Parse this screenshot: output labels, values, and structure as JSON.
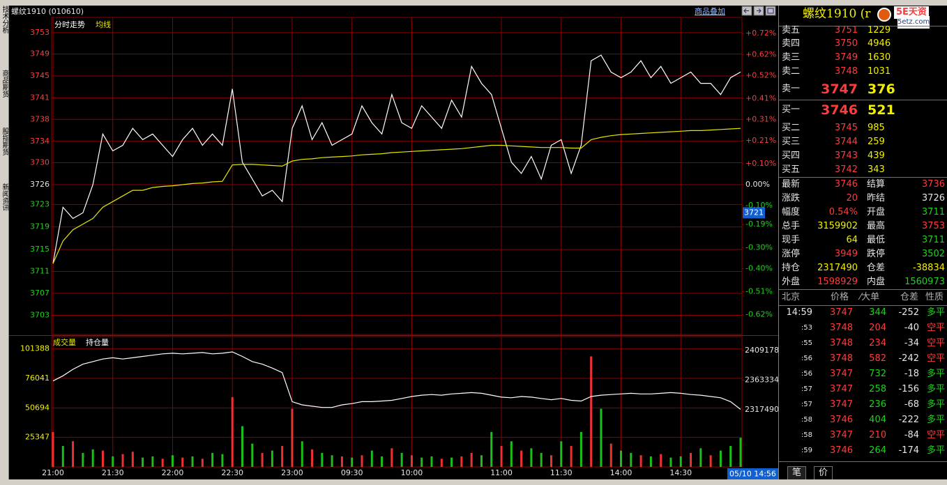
{
  "header": {
    "title": "螺纹1910 (010610)",
    "overlay_link": "商品叠加"
  },
  "side_tabs": [
    "技术分析",
    "商品期货",
    "股指期货",
    "新闻资讯"
  ],
  "chart_data": [
    {
      "type": "line",
      "x": [
        0,
        5,
        10,
        15,
        20,
        25,
        30,
        35,
        40,
        45,
        50,
        55,
        60,
        65,
        70,
        75,
        80,
        85,
        90,
        95,
        100,
        105,
        110,
        115,
        120,
        125,
        130,
        135,
        140,
        145,
        150,
        155,
        160,
        165,
        170,
        175,
        180,
        185,
        190,
        195,
        200,
        205,
        210,
        215,
        220,
        225,
        230,
        235,
        240,
        245,
        250,
        255,
        260,
        265,
        270,
        275,
        280,
        285,
        290,
        295,
        300,
        305,
        310,
        315,
        320,
        325,
        330,
        335,
        340,
        345
      ],
      "series": [
        {
          "name": "分时走势",
          "color": "#ffffff",
          "values": [
            3712,
            3722,
            3720,
            3721,
            3726,
            3735,
            3732,
            3733,
            3736,
            3734,
            3735,
            3733,
            3731,
            3734,
            3736,
            3733,
            3735,
            3733,
            3743,
            3730,
            3727,
            3724,
            3725,
            3723,
            3736,
            3740,
            3734,
            3737,
            3733,
            3734,
            3735,
            3740,
            3737,
            3735,
            3742,
            3737,
            3736,
            3740,
            3738,
            3736,
            3741,
            3738,
            3747,
            3744,
            3742,
            3736,
            3730,
            3728,
            3731,
            3727,
            3733,
            3734,
            3728,
            3733,
            3748,
            3749,
            3746,
            3745,
            3746,
            3748,
            3745,
            3747,
            3744,
            3745,
            3746,
            3744,
            3744,
            3742,
            3745,
            3746
          ]
        },
        {
          "name": "均线",
          "color": "#e8e800",
          "values": [
            3712,
            3716,
            3718,
            3719,
            3720,
            3722,
            3723,
            3724,
            3725,
            3725,
            3725.5,
            3725.7,
            3725.8,
            3726,
            3726.2,
            3726.3,
            3726.5,
            3726.6,
            3729.5,
            3729.6,
            3729.6,
            3729.5,
            3729.4,
            3729.3,
            3730.2,
            3730.5,
            3730.6,
            3730.8,
            3730.9,
            3731,
            3731.1,
            3731.3,
            3731.4,
            3731.5,
            3731.7,
            3731.8,
            3731.9,
            3732,
            3732.1,
            3732.2,
            3732.3,
            3732.4,
            3732.6,
            3732.8,
            3733,
            3733,
            3732.9,
            3732.8,
            3732.7,
            3732.6,
            3732.6,
            3732.6,
            3732.5,
            3732.5,
            3734,
            3734.4,
            3734.7,
            3734.9,
            3735,
            3735.1,
            3735.2,
            3735.3,
            3735.4,
            3735.5,
            3735.6,
            3735.6,
            3735.7,
            3735.8,
            3735.9,
            3736
          ]
        }
      ],
      "xlim": [
        0,
        345
      ],
      "xticks": [
        {
          "value": 0,
          "label": "21:00"
        },
        {
          "value": 30,
          "label": "21:30"
        },
        {
          "value": 60,
          "label": "22:00"
        },
        {
          "value": 90,
          "label": "22:30"
        },
        {
          "value": 120,
          "label": "23:00"
        },
        {
          "value": 150,
          "label": "09:30"
        },
        {
          "value": 180,
          "label": "10:00"
        },
        {
          "value": 225,
          "label": "11:00"
        },
        {
          "value": 255,
          "label": "11:30"
        },
        {
          "value": 285,
          "label": "14:00"
        },
        {
          "value": 315,
          "label": "14:30"
        }
      ],
      "ylim": [
        3699.4,
        3755.7
      ],
      "yticks": [
        {
          "value": 3753.0,
          "label": "3753"
        },
        {
          "value": 3749.2,
          "label": "3749"
        },
        {
          "value": 3745.3,
          "label": "3745"
        },
        {
          "value": 3741.4,
          "label": "3741"
        },
        {
          "value": 3737.6,
          "label": "3738"
        },
        {
          "value": 3733.7,
          "label": "3734"
        },
        {
          "value": 3729.9,
          "label": "3730"
        },
        {
          "value": 3726,
          "label": "3726"
        },
        {
          "value": 3722.5,
          "label": "3723"
        },
        {
          "value": 3718.5,
          "label": "3719"
        },
        {
          "value": 3714.5,
          "label": "3715"
        },
        {
          "value": 3710.6,
          "label": "3711"
        },
        {
          "value": 3706.7,
          "label": "3707"
        },
        {
          "value": 3702.8,
          "label": "3703"
        }
      ],
      "y2lim": [
        -0.714,
        0.797
      ],
      "y2ticks": [
        {
          "value": 0.72,
          "label": "+0.72%"
        },
        {
          "value": 0.62,
          "label": "+0.62%"
        },
        {
          "value": 0.52,
          "label": "+0.52%"
        },
        {
          "value": 0.41,
          "label": "+0.41%"
        },
        {
          "value": 0.31,
          "label": "+0.31%"
        },
        {
          "value": 0.21,
          "label": "+0.21%"
        },
        {
          "value": 0.1,
          "label": "+0.10%"
        },
        {
          "value": 0,
          "label": "0.00%"
        },
        {
          "value": -0.1,
          "label": "-0.10%"
        },
        {
          "value": -0.19,
          "label": "-0.19%"
        },
        {
          "value": -0.3,
          "label": "-0.30%"
        },
        {
          "value": -0.4,
          "label": "-0.40%"
        },
        {
          "value": -0.51,
          "label": "-0.51%"
        },
        {
          "value": -0.62,
          "label": "-0.62%"
        }
      ],
      "grid": true,
      "cursor_price": 3721
    },
    {
      "type": "bar",
      "x": [
        0,
        5,
        10,
        15,
        20,
        25,
        30,
        35,
        40,
        45,
        50,
        55,
        60,
        65,
        70,
        75,
        80,
        85,
        90,
        95,
        100,
        105,
        110,
        115,
        120,
        125,
        130,
        135,
        140,
        145,
        150,
        155,
        160,
        165,
        170,
        175,
        180,
        185,
        190,
        195,
        200,
        205,
        210,
        215,
        220,
        225,
        230,
        235,
        240,
        245,
        250,
        255,
        260,
        265,
        270,
        275,
        280,
        285,
        290,
        295,
        300,
        305,
        310,
        315,
        320,
        325,
        330,
        335,
        340,
        345
      ],
      "series": [
        {
          "name": "成交量",
          "color": "#e8e800",
          "values": [
            30000,
            18000,
            22000,
            12000,
            15000,
            14000,
            9000,
            11000,
            13000,
            8000,
            9000,
            7000,
            10000,
            8000,
            9000,
            7000,
            12000,
            11000,
            60000,
            35000,
            20000,
            12000,
            14000,
            18000,
            50000,
            22000,
            15000,
            12000,
            10000,
            9000,
            8000,
            10000,
            14000,
            9000,
            16000,
            12000,
            10000,
            8000,
            9000,
            7000,
            8000,
            9000,
            12000,
            10000,
            30000,
            18000,
            22000,
            14000,
            16000,
            12000,
            10000,
            22000,
            18000,
            30000,
            95000,
            50000,
            20000,
            14000,
            12000,
            10000,
            9000,
            11000,
            8000,
            9000,
            12000,
            16000,
            10000,
            14000,
            18000,
            25000
          ],
          "colors": [
            "#ee3030",
            "#18c018",
            "#ee3030",
            "#18c018",
            "#18c018",
            "#ee3030",
            "#18c018",
            "#ee3030",
            "#ee3030",
            "#18c018",
            "#18c018",
            "#ee3030",
            "#18c018",
            "#ee3030",
            "#18c018",
            "#ee3030",
            "#18c018",
            "#18c018",
            "#ee3030",
            "#18c018",
            "#18c018",
            "#ee3030",
            "#18c018",
            "#ee3030",
            "#ee3030",
            "#18c018",
            "#ee3030",
            "#18c018",
            "#18c018",
            "#ee3030",
            "#18c018",
            "#ee3030",
            "#18c018",
            "#18c018",
            "#ee3030",
            "#18c018",
            "#ee3030",
            "#18c018",
            "#18c018",
            "#ee3030",
            "#18c018",
            "#ee3030",
            "#ee3030",
            "#18c018",
            "#18c018",
            "#ee3030",
            "#18c018",
            "#ee3030",
            "#18c018",
            "#18c018",
            "#ee3030",
            "#18c018",
            "#ee3030",
            "#18c018",
            "#ee3030",
            "#18c018",
            "#ee3030",
            "#18c018",
            "#18c018",
            "#ee3030",
            "#18c018",
            "#ee3030",
            "#18c018",
            "#18c018",
            "#ee3030",
            "#18c018",
            "#ee3030",
            "#18c018",
            "#18c018",
            "#18c018"
          ]
        },
        {
          "name": "持仓量",
          "color": "#ffffff",
          "type": "line",
          "axis": "y2",
          "values": [
            2362000,
            2370000,
            2380000,
            2388000,
            2392000,
            2396000,
            2398000,
            2396000,
            2398000,
            2400000,
            2402000,
            2404000,
            2405000,
            2404000,
            2405000,
            2406000,
            2404000,
            2405000,
            2407000,
            2400000,
            2392000,
            2388000,
            2382000,
            2375000,
            2330000,
            2325000,
            2323000,
            2321000,
            2321000,
            2325000,
            2327000,
            2330000,
            2330000,
            2331000,
            2332000,
            2335000,
            2338000,
            2340000,
            2341000,
            2340000,
            2342000,
            2343000,
            2344000,
            2343000,
            2340000,
            2337000,
            2336000,
            2338000,
            2337000,
            2335000,
            2333000,
            2335000,
            2332000,
            2331000,
            2338000,
            2340000,
            2341000,
            2342000,
            2343000,
            2342000,
            2342000,
            2343000,
            2344000,
            2343000,
            2341000,
            2340000,
            2338000,
            2336000,
            2330000,
            2318000
          ]
        }
      ],
      "xlim": [
        0,
        345
      ],
      "ylim": [
        0,
        112000
      ],
      "yticks": [
        101388,
        76041,
        50694,
        25347
      ],
      "y2lim": [
        2229040,
        2430750
      ],
      "y2ticks": [
        2409178,
        2363334,
        2317490
      ],
      "time_label": "05/10 14:56"
    }
  ],
  "quote": {
    "title": "螺纹1910 (r",
    "logo": "5E天资",
    "logo_url": "5etz.com",
    "asks": [
      {
        "label": "卖五",
        "price": 3751,
        "volume": 1229
      },
      {
        "label": "卖四",
        "price": 3750,
        "volume": 4946
      },
      {
        "label": "卖三",
        "price": 3749,
        "volume": 1630
      },
      {
        "label": "卖二",
        "price": 3748,
        "volume": 1031
      },
      {
        "label": "卖一",
        "price": 3747,
        "volume": 376
      }
    ],
    "bids": [
      {
        "label": "买一",
        "price": 3746,
        "volume": 521
      },
      {
        "label": "买二",
        "price": 3745,
        "volume": 985
      },
      {
        "label": "买三",
        "price": 3744,
        "volume": 259
      },
      {
        "label": "买四",
        "price": 3743,
        "volume": 439
      },
      {
        "label": "买五",
        "price": 3742,
        "volume": 343
      }
    ],
    "stats": [
      [
        "最新",
        3746,
        "结算",
        3736
      ],
      [
        "涨跌",
        20,
        "昨结",
        3726
      ],
      [
        "幅度",
        "0.54%",
        "开盘",
        3711
      ],
      [
        "总手",
        3159902,
        "最高",
        3753
      ],
      [
        "现手",
        64,
        "最低",
        3711
      ],
      [
        "涨停",
        3949,
        "跌停",
        3502
      ],
      [
        "持仓",
        2317490,
        "仓差",
        -38834
      ],
      [
        "外盘",
        1598929,
        "内盘",
        1560973
      ]
    ]
  },
  "ticks": {
    "header": [
      "北京",
      "价格",
      "⁄大单",
      "仓差",
      "性质"
    ],
    "rows": [
      [
        "14:59",
        3747,
        344,
        -252,
        "多平"
      ],
      [
        ":53",
        3748,
        204,
        -40,
        "空平"
      ],
      [
        ":55",
        3748,
        234,
        -34,
        "空平"
      ],
      [
        ":56",
        3748,
        582,
        -242,
        "空平"
      ],
      [
        ":56",
        3747,
        732,
        -18,
        "多平"
      ],
      [
        ":57",
        3747,
        258,
        -156,
        "多平"
      ],
      [
        ":57",
        3747,
        236,
        -68,
        "多平"
      ],
      [
        ":58",
        3746,
        404,
        -222,
        "多平"
      ],
      [
        ":58",
        3747,
        210,
        -84,
        "空平"
      ],
      [
        ":59",
        3746,
        264,
        -174,
        "多平"
      ]
    ]
  },
  "tabs": [
    "笔",
    "价"
  ]
}
